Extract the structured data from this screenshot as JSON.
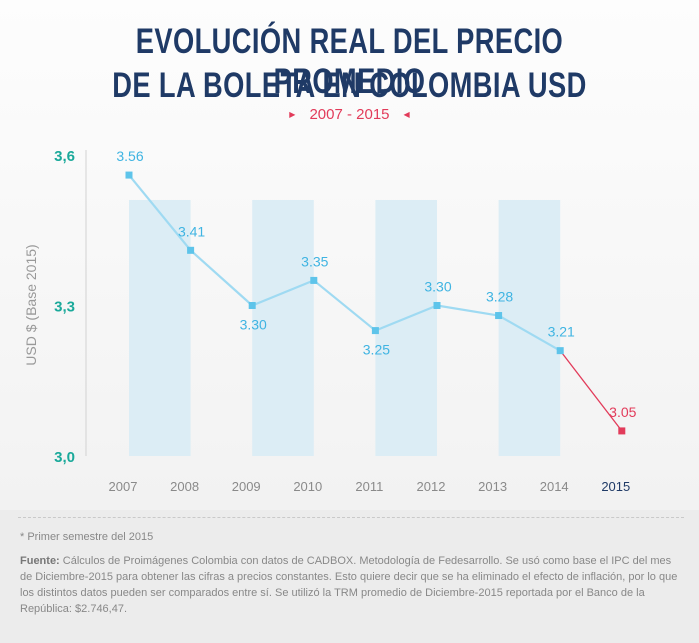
{
  "header": {
    "title_line1": "EVOLUCIÓN REAL DEL PRECIO PROMEDIO",
    "title_line2": "DE LA BOLETA EN COLOMBIA USD",
    "subtitle": "2007 - 2015"
  },
  "chart_data": {
    "type": "line",
    "ylabel": "USD $ (Base 2015)",
    "xlabel": "",
    "ylim": [
      3.0,
      3.6
    ],
    "y_ticks": [
      "3,0",
      "3,3",
      "3,6"
    ],
    "y_tick_values": [
      3.0,
      3.3,
      3.6
    ],
    "categories": [
      "2007",
      "2008",
      "2009",
      "2010",
      "2011",
      "2012",
      "2013",
      "2014",
      "2015"
    ],
    "values": [
      3.56,
      3.41,
      3.3,
      3.35,
      3.25,
      3.3,
      3.28,
      3.21,
      3.05
    ],
    "value_labels": [
      "3.56",
      "3.41",
      "3.30",
      "3.35",
      "3.25",
      "3.30",
      "3.28",
      "3.21",
      "3.05"
    ],
    "label_positions": [
      "above",
      "above",
      "below",
      "above",
      "below",
      "above",
      "above",
      "above",
      "above"
    ],
    "highlighted_category": "2015",
    "colors": {
      "line": "#9fdaf2",
      "marker": "#5ec4ea",
      "value_label": "#3fb4e2",
      "highlight": "#e23b5a",
      "band": "#dcedf5",
      "y_tick": "#1aa99a",
      "x_tick": "#8a8a8a",
      "x_tick_highlight": "#1f3a66"
    }
  },
  "notes": {
    "footnote": "* Primer semestre del 2015",
    "source_label": "Fuente:",
    "source_text": " Cálculos de Proimágenes Colombia con datos de CADBOX. Metodología de Fedesarrollo. Se usó como base el IPC del mes de Diciembre-2015 para obtener las cifras a precios constantes. Esto quiere decir que se ha eliminado el efecto de inflación, por lo que los distintos datos pueden ser comparados entre sí. Se utilizó la TRM promedio de Diciembre-2015 reportada por el Banco de la República: $2.746,47."
  }
}
